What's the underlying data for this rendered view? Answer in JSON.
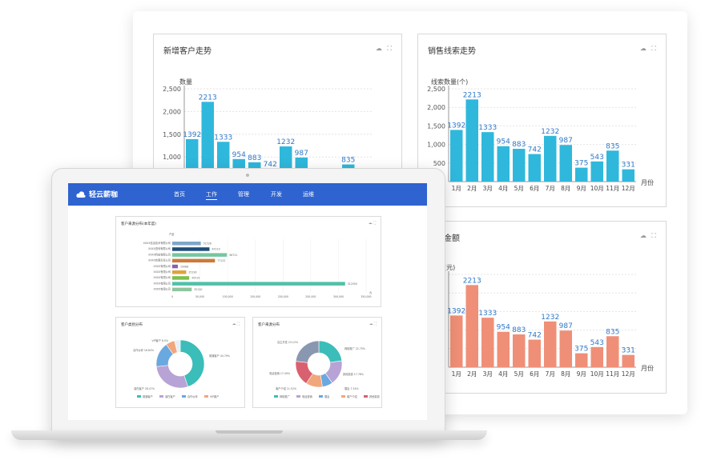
{
  "months": [
    "1月",
    "2月",
    "3月",
    "4月",
    "5月",
    "6月",
    "7月",
    "8月",
    "9月",
    "10月",
    "11月",
    "12月"
  ],
  "values": [
    1392,
    2213,
    1333,
    954,
    883,
    742,
    1232,
    987,
    375,
    543,
    835,
    331
  ],
  "yticks": [
    "2,500",
    "2,000",
    "1,500",
    "1,000",
    "500"
  ],
  "card1": {
    "title": "新增客户走势",
    "unit": "数量",
    "color": "#2fb8dc",
    "tools": "☁ ⛶"
  },
  "card2": {
    "title": "销售线索走势",
    "unit": "线索数量(个)",
    "xunit": "月份",
    "color": "#2fb8dc",
    "tools": "☁ ⛶"
  },
  "card3": {
    "title": "商机金额",
    "unit": "金额(元)",
    "xunit": "月份",
    "color": "#ef8f77",
    "tools": "☁ ⛶"
  },
  "nav": {
    "brand": "轻云薪咖",
    "items": [
      "首页",
      "工作",
      "管理",
      "开发",
      "运维"
    ],
    "active": 1
  },
  "mini1": {
    "title": "客户来源分布(本年度)",
    "axis_label": "产品",
    "tools": "☁ ⛶",
    "categories": [
      "XXXX信息技术有限公司",
      "XXXX咨询有限公司",
      "XXXX科技有限公司",
      "XXXX有限责任公司",
      "XXXX有限公司",
      "XXXX有限公司",
      "XXXX有限公司",
      "XXXX有限公司",
      "XXXX有限公司"
    ],
    "values": [
      51526,
      67219,
      98721,
      77122,
      10088,
      25190,
      30519,
      312050,
      35120
    ],
    "colors": [
      "#7ea6c9",
      "#1e4f7a",
      "#76c6a0",
      "#cc7a3a",
      "#8a5cb5",
      "#e0a33a",
      "#7fbf4d",
      "#4fc1a8",
      "#8fc59e"
    ],
    "xticks": [
      "0",
      "50,000",
      "100,000",
      "150,000",
      "200,000",
      "250,000",
      "300,000",
      "350,000"
    ],
    "xunit": "元"
  },
  "mini2": {
    "title": "客户类别分布",
    "tools": "☁ ⛶",
    "slices": [
      {
        "name": "普通客户",
        "pct": 44.79,
        "color": "#3bbdb9"
      },
      {
        "name": "潜在客户",
        "pct": 28.47,
        "color": "#b8a3d6"
      },
      {
        "name": "合作伙伴",
        "pct": 16.84,
        "color": "#6aa8e0"
      },
      {
        "name": "VIP客户",
        "pct": 6.0,
        "color": "#f0a77c"
      },
      {
        "name": "其他",
        "pct": 3.9,
        "color": "#e8eef6"
      }
    ],
    "labels": [
      "普通客户 44.79%",
      "潜在客户 28.47%",
      "合作伙伴 16.84%",
      "VIP客户 6.0%"
    ]
  },
  "mini3": {
    "title": "客户来源分布",
    "tools": "☁ ⛶",
    "slices": [
      {
        "name": "网络推广",
        "pct": 22.75,
        "color": "#3bbdb9"
      },
      {
        "name": "电话营销",
        "pct": 17.49,
        "color": "#b8a3d6"
      },
      {
        "name": "展会",
        "pct": 7.34,
        "color": "#6aa8e0"
      },
      {
        "name": "客户介绍",
        "pct": 11.52,
        "color": "#f0a77c"
      },
      {
        "name": "其他渠道",
        "pct": 17.78,
        "color": "#d9606e"
      },
      {
        "name": "自主开发",
        "pct": 23.12,
        "color": "#8a97b0"
      }
    ],
    "labels": [
      "网络推广 22.75%",
      "电话营销 17.49%",
      "展会 7.34%",
      "客户介绍 11.52%",
      "其他渠道 17.78%",
      "自主开发 23.12%"
    ]
  }
}
